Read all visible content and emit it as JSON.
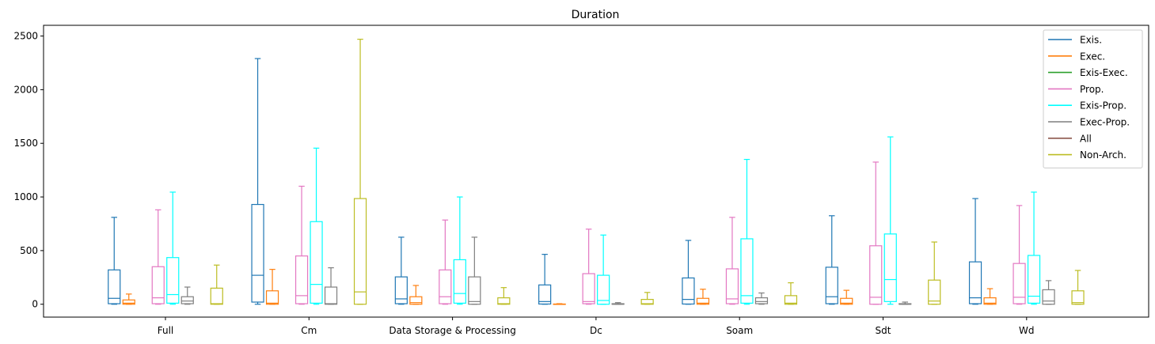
{
  "chart_data": {
    "type": "box",
    "title": "Duration",
    "xlabel": "",
    "ylabel": "",
    "ylim": [
      -120,
      2600
    ],
    "yticks": [
      0,
      500,
      1000,
      1500,
      2000,
      2500
    ],
    "grid": false,
    "legend_position": "top-right",
    "categories": [
      "Full",
      "Cm",
      "Data Storage & Processing",
      "Dc",
      "Soam",
      "Sdt",
      "Wd"
    ],
    "series": [
      {
        "name": "Exis.",
        "color": "#1f77b4",
        "boxes": [
          {
            "whislo": 0,
            "q1": 5,
            "med": 55,
            "q3": 320,
            "whishi": 810
          },
          {
            "whislo": 0,
            "q1": 20,
            "med": 270,
            "q3": 930,
            "whishi": 2290
          },
          {
            "whislo": 0,
            "q1": 5,
            "med": 50,
            "q3": 255,
            "whishi": 625
          },
          {
            "whislo": 0,
            "q1": 2,
            "med": 25,
            "q3": 180,
            "whishi": 465
          },
          {
            "whislo": 0,
            "q1": 2,
            "med": 45,
            "q3": 245,
            "whishi": 595
          },
          {
            "whislo": 0,
            "q1": 5,
            "med": 70,
            "q3": 345,
            "whishi": 825
          },
          {
            "whislo": 0,
            "q1": 5,
            "med": 60,
            "q3": 395,
            "whishi": 985
          }
        ]
      },
      {
        "name": "Exec.",
        "color": "#ff7f0e",
        "boxes": [
          {
            "whislo": 0,
            "q1": 0,
            "med": 10,
            "q3": 40,
            "whishi": 95
          },
          {
            "whislo": 0,
            "q1": 0,
            "med": 10,
            "q3": 125,
            "whishi": 325
          },
          {
            "whislo": 0,
            "q1": 0,
            "med": 15,
            "q3": 70,
            "whishi": 175
          },
          {
            "whislo": 0,
            "q1": 0,
            "med": 0,
            "q3": 2,
            "whishi": 5
          },
          {
            "whislo": 0,
            "q1": 0,
            "med": 10,
            "q3": 55,
            "whishi": 140
          },
          {
            "whislo": 0,
            "q1": 0,
            "med": 10,
            "q3": 55,
            "whishi": 130
          },
          {
            "whislo": 0,
            "q1": 0,
            "med": 10,
            "q3": 60,
            "whishi": 145
          }
        ]
      },
      {
        "name": "Exis-Exec.",
        "color": "#2ca02c",
        "boxes": [
          null,
          null,
          null,
          null,
          null,
          null,
          null
        ]
      },
      {
        "name": "Prop.",
        "color": "#e377c2",
        "boxes": [
          {
            "whislo": 0,
            "q1": 5,
            "med": 60,
            "q3": 350,
            "whishi": 880
          },
          {
            "whislo": 0,
            "q1": 5,
            "med": 80,
            "q3": 450,
            "whishi": 1100
          },
          {
            "whislo": 0,
            "q1": 5,
            "med": 70,
            "q3": 320,
            "whishi": 785
          },
          {
            "whislo": 0,
            "q1": 5,
            "med": 25,
            "q3": 285,
            "whishi": 700
          },
          {
            "whislo": 0,
            "q1": 5,
            "med": 50,
            "q3": 330,
            "whishi": 810
          },
          {
            "whislo": 0,
            "q1": 0,
            "med": 65,
            "q3": 545,
            "whishi": 1325
          },
          {
            "whislo": 0,
            "q1": 5,
            "med": 65,
            "q3": 380,
            "whishi": 920
          }
        ]
      },
      {
        "name": "Exis-Prop.",
        "color": "#00ffff",
        "boxes": [
          {
            "whislo": 0,
            "q1": 10,
            "med": 90,
            "q3": 435,
            "whishi": 1045
          },
          {
            "whislo": 0,
            "q1": 10,
            "med": 185,
            "q3": 770,
            "whishi": 1455
          },
          {
            "whislo": 0,
            "q1": 10,
            "med": 100,
            "q3": 415,
            "whishi": 1000
          },
          {
            "whislo": 0,
            "q1": 0,
            "med": 35,
            "q3": 270,
            "whishi": 645
          },
          {
            "whislo": 0,
            "q1": 10,
            "med": 80,
            "q3": 610,
            "whishi": 1350
          },
          {
            "whislo": 0,
            "q1": 25,
            "med": 230,
            "q3": 655,
            "whishi": 1560
          },
          {
            "whislo": 0,
            "q1": 10,
            "med": 75,
            "q3": 455,
            "whishi": 1045
          }
        ]
      },
      {
        "name": "Exec-Prop.",
        "color": "#7f7f7f",
        "boxes": [
          {
            "whislo": 0,
            "q1": 5,
            "med": 30,
            "q3": 70,
            "whishi": 160
          },
          {
            "whislo": 0,
            "q1": 0,
            "med": 5,
            "q3": 160,
            "whishi": 340
          },
          {
            "whislo": 0,
            "q1": 0,
            "med": 25,
            "q3": 255,
            "whishi": 625
          },
          {
            "whislo": 0,
            "q1": 0,
            "med": 0,
            "q3": 5,
            "whishi": 15
          },
          {
            "whislo": 0,
            "q1": 5,
            "med": 25,
            "q3": 60,
            "whishi": 105
          },
          {
            "whislo": 0,
            "q1": 0,
            "med": 0,
            "q3": 5,
            "whishi": 20
          },
          {
            "whislo": 0,
            "q1": 0,
            "med": 30,
            "q3": 135,
            "whishi": 220
          }
        ]
      },
      {
        "name": "All",
        "color": "#8c564b",
        "boxes": [
          null,
          null,
          null,
          null,
          null,
          null,
          null
        ]
      },
      {
        "name": "Non-Arch.",
        "color": "#bcbd22",
        "boxes": [
          {
            "whislo": 0,
            "q1": 0,
            "med": 5,
            "q3": 150,
            "whishi": 365
          },
          {
            "whislo": 0,
            "q1": 0,
            "med": 115,
            "q3": 985,
            "whishi": 2470
          },
          {
            "whislo": 0,
            "q1": 0,
            "med": 5,
            "q3": 60,
            "whishi": 155
          },
          {
            "whislo": 0,
            "q1": 0,
            "med": 5,
            "q3": 45,
            "whishi": 110
          },
          {
            "whislo": 0,
            "q1": 0,
            "med": 10,
            "q3": 80,
            "whishi": 200
          },
          {
            "whislo": 0,
            "q1": 0,
            "med": 30,
            "q3": 225,
            "whishi": 580
          },
          {
            "whislo": 0,
            "q1": 0,
            "med": 15,
            "q3": 125,
            "whishi": 315
          }
        ]
      }
    ]
  }
}
